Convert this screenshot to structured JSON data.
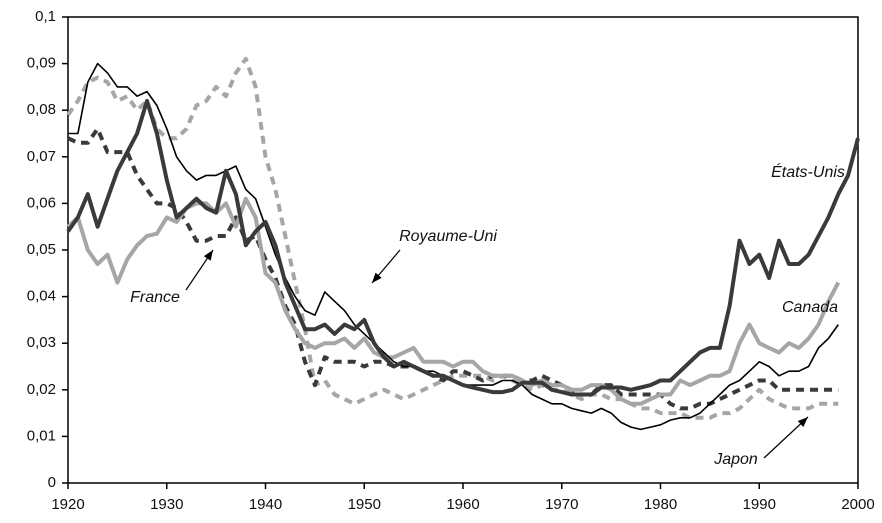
{
  "chart_data": {
    "type": "line",
    "x": [
      1920,
      1921,
      1922,
      1923,
      1924,
      1925,
      1926,
      1927,
      1928,
      1929,
      1930,
      1931,
      1932,
      1933,
      1934,
      1935,
      1936,
      1937,
      1938,
      1939,
      1940,
      1941,
      1942,
      1943,
      1944,
      1945,
      1946,
      1947,
      1948,
      1949,
      1950,
      1951,
      1952,
      1953,
      1954,
      1955,
      1956,
      1957,
      1958,
      1959,
      1960,
      1961,
      1962,
      1963,
      1964,
      1965,
      1966,
      1967,
      1968,
      1969,
      1970,
      1971,
      1972,
      1973,
      1974,
      1975,
      1976,
      1977,
      1978,
      1979,
      1980,
      1981,
      1982,
      1983,
      1984,
      1985,
      1986,
      1987,
      1988,
      1989,
      1990,
      1991,
      1992,
      1993,
      1994,
      1995,
      1996,
      1997,
      1998,
      1999,
      2000
    ],
    "series": [
      {
        "name": "États-Unis",
        "color": "#3a3a3a",
        "style": "solid",
        "width": 4,
        "values": [
          0.054,
          0.057,
          0.062,
          0.055,
          0.061,
          0.067,
          0.071,
          0.075,
          0.082,
          0.075,
          0.065,
          0.057,
          0.059,
          0.061,
          0.059,
          0.058,
          0.067,
          0.062,
          0.051,
          0.054,
          0.056,
          0.051,
          0.043,
          0.038,
          0.033,
          0.033,
          0.034,
          0.032,
          0.034,
          0.033,
          0.035,
          0.03,
          0.027,
          0.025,
          0.026,
          0.025,
          0.024,
          0.023,
          0.023,
          0.022,
          0.021,
          0.0205,
          0.02,
          0.0195,
          0.0195,
          0.02,
          0.0215,
          0.0215,
          0.0215,
          0.02,
          0.0195,
          0.019,
          0.019,
          0.019,
          0.0205,
          0.0205,
          0.0205,
          0.02,
          0.0205,
          0.021,
          0.022,
          0.022,
          0.024,
          0.026,
          0.028,
          0.029,
          0.029,
          0.038,
          0.052,
          0.047,
          0.049,
          0.044,
          0.052,
          0.047,
          0.047,
          0.049,
          0.053,
          0.057,
          0.062,
          0.066,
          0.074
        ]
      },
      {
        "name": "Royaume-Uni",
        "color": "#000000",
        "style": "solid",
        "width": 1.6,
        "values": [
          0.075,
          0.075,
          0.086,
          0.09,
          0.088,
          0.085,
          0.085,
          0.083,
          0.084,
          0.081,
          0.076,
          0.07,
          0.067,
          0.065,
          0.066,
          0.066,
          0.067,
          0.068,
          0.063,
          0.061,
          0.055,
          0.049,
          0.044,
          0.04,
          0.037,
          0.036,
          0.041,
          0.039,
          0.037,
          0.034,
          0.032,
          0.03,
          0.028,
          0.026,
          0.025,
          0.025,
          0.024,
          0.024,
          0.023,
          0.022,
          0.021,
          0.021,
          0.021,
          0.021,
          0.022,
          0.022,
          0.021,
          0.019,
          0.018,
          0.017,
          0.017,
          0.016,
          0.0155,
          0.015,
          0.016,
          0.015,
          0.013,
          0.012,
          0.0115,
          0.012,
          0.0125,
          0.0135,
          0.014,
          0.014,
          0.015,
          0.017,
          0.019,
          0.021,
          0.022,
          0.024,
          0.026,
          0.025,
          0.023,
          0.024,
          0.024,
          0.025,
          0.029,
          0.031,
          0.034,
          null,
          null
        ]
      },
      {
        "name": "Canada",
        "color": "#a6a6a6",
        "style": "solid",
        "width": 4,
        "values": [
          0.055,
          0.057,
          0.05,
          0.047,
          0.049,
          0.043,
          0.048,
          0.051,
          0.053,
          0.0535,
          0.057,
          0.056,
          0.059,
          0.06,
          0.06,
          0.058,
          0.06,
          0.055,
          0.061,
          0.057,
          0.045,
          0.043,
          0.037,
          0.033,
          0.03,
          0.029,
          0.03,
          0.03,
          0.031,
          0.029,
          0.031,
          0.028,
          0.027,
          0.027,
          0.028,
          0.029,
          0.026,
          0.026,
          0.026,
          0.025,
          0.026,
          0.026,
          0.024,
          0.023,
          0.023,
          0.023,
          0.022,
          0.021,
          0.022,
          0.021,
          0.021,
          0.02,
          0.02,
          0.021,
          0.021,
          0.02,
          0.018,
          0.017,
          0.017,
          0.018,
          0.019,
          0.019,
          0.022,
          0.021,
          0.022,
          0.023,
          0.023,
          0.024,
          0.03,
          0.034,
          0.03,
          0.029,
          0.028,
          0.03,
          0.029,
          0.031,
          0.034,
          0.039,
          0.043,
          null,
          null
        ]
      },
      {
        "name": "France",
        "color": "#3a3a3a",
        "style": "dashed",
        "width": 4,
        "values": [
          0.074,
          0.073,
          0.073,
          0.076,
          0.071,
          0.071,
          0.071,
          0.066,
          0.063,
          0.06,
          0.06,
          0.059,
          0.056,
          0.052,
          0.052,
          0.053,
          0.053,
          0.057,
          0.052,
          0.053,
          0.048,
          0.044,
          0.038,
          0.034,
          0.026,
          0.021,
          0.027,
          0.026,
          0.026,
          0.026,
          0.025,
          0.026,
          0.026,
          0.025,
          0.025,
          0.025,
          0.024,
          0.023,
          0.022,
          0.024,
          0.024,
          0.023,
          0.022,
          0.023,
          0.023,
          0.023,
          0.022,
          0.022,
          0.023,
          0.022,
          0.021,
          0.02,
          0.019,
          0.019,
          0.021,
          0.021,
          0.019,
          0.019,
          0.019,
          0.019,
          0.019,
          0.017,
          0.016,
          0.016,
          0.017,
          0.017,
          0.018,
          0.019,
          0.02,
          0.021,
          0.022,
          0.022,
          0.02,
          0.02,
          0.02,
          0.02,
          0.02,
          0.02,
          0.02,
          null,
          null
        ]
      },
      {
        "name": "Japon",
        "color": "#a6a6a6",
        "style": "dashed",
        "width": 4,
        "values": [
          0.079,
          0.082,
          0.086,
          0.087,
          0.086,
          0.082,
          0.083,
          0.08,
          0.082,
          0.076,
          0.074,
          0.074,
          0.076,
          0.081,
          0.082,
          0.085,
          0.083,
          0.088,
          0.091,
          0.085,
          0.07,
          0.063,
          0.053,
          0.043,
          0.033,
          0.021,
          0.022,
          0.019,
          0.018,
          0.017,
          0.018,
          0.019,
          0.02,
          0.019,
          0.018,
          0.019,
          0.02,
          0.021,
          0.022,
          0.023,
          0.023,
          0.023,
          0.023,
          0.022,
          0.023,
          0.022,
          0.021,
          0.02,
          0.021,
          0.02,
          0.02,
          0.019,
          0.018,
          0.019,
          0.019,
          0.018,
          0.018,
          0.017,
          0.016,
          0.016,
          0.015,
          0.015,
          0.015,
          0.014,
          0.014,
          0.014,
          0.015,
          0.015,
          0.016,
          0.018,
          0.02,
          0.018,
          0.017,
          0.016,
          0.016,
          0.016,
          0.017,
          0.017,
          0.017,
          null,
          null
        ]
      }
    ],
    "xlim": [
      1920,
      2000
    ],
    "xticks": [
      1920,
      1930,
      1940,
      1950,
      1960,
      1970,
      1980,
      1990,
      2000
    ],
    "ylim": [
      0,
      0.1
    ],
    "yticks": [
      0,
      {
        "value": 0.01,
        "label": "0,01"
      },
      {
        "value": 0.02,
        "label": "0,02"
      },
      {
        "value": 0.03,
        "label": "0,03"
      },
      {
        "value": 0.04,
        "label": "0,04"
      },
      {
        "value": 0.05,
        "label": "0,05"
      },
      {
        "value": 0.06,
        "label": "0,06"
      },
      {
        "value": 0.07,
        "label": "0,07"
      },
      {
        "value": 0.08,
        "label": "0,08"
      },
      {
        "value": 0.09,
        "label": "0,09"
      },
      {
        "value": 0.1,
        "label": "0,1"
      }
    ],
    "grid": false
  }
}
